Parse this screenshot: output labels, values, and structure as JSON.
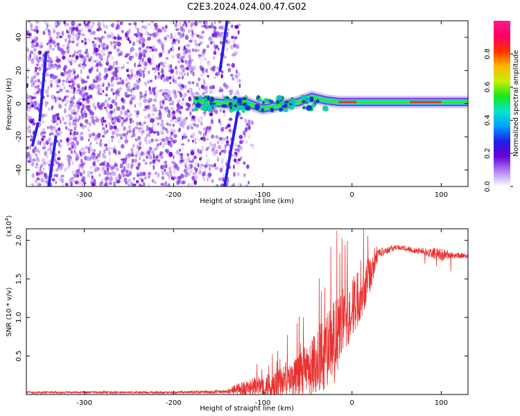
{
  "title": "C2E3.2024.024.00.47.G02",
  "colors": {
    "snr_line": "#e8312f",
    "track_core": "#ff2a2a"
  },
  "chart_data": [
    {
      "type": "heatmap",
      "xlabel": "Height of straight line (km)",
      "ylabel": "Frequency (Hz)",
      "xlim": [
        -365,
        130
      ],
      "ylim": [
        -50,
        50
      ],
      "xticks": [
        -300,
        -200,
        -100,
        0,
        100
      ],
      "yticks": [
        -40,
        -20,
        0,
        20,
        40
      ],
      "colorbar": {
        "label": "Normalized spectral amplitude",
        "range": [
          0,
          1
        ],
        "ticks": [
          0.0,
          0.2,
          0.4,
          0.6,
          0.8
        ],
        "tick_labels": [
          "0.0",
          "0.2",
          "0.4",
          "0.6",
          "0.8"
        ],
        "colormap": [
          "#ffffff",
          "#b084f5",
          "#6a00d6",
          "#1e1ee8",
          "#00a0ff",
          "#00e6c8",
          "#19e619",
          "#c8f000",
          "#ffb400",
          "#ff3000",
          "#ff0064",
          "#ff1a8c"
        ]
      },
      "noise_region_x": [
        -365,
        -125
      ],
      "signal_track": [
        {
          "x": -178,
          "y": 2
        },
        {
          "x": -160,
          "y": 1
        },
        {
          "x": -140,
          "y": 0
        },
        {
          "x": -120,
          "y": 1
        },
        {
          "x": -100,
          "y": -3
        },
        {
          "x": -80,
          "y": -1
        },
        {
          "x": -60,
          "y": 1
        },
        {
          "x": -45,
          "y": 4
        },
        {
          "x": -30,
          "y": 2
        },
        {
          "x": -15,
          "y": 1
        },
        {
          "x": 0,
          "y": 1
        },
        {
          "x": 30,
          "y": 1
        },
        {
          "x": 60,
          "y": 1
        },
        {
          "x": 100,
          "y": 1
        },
        {
          "x": 130,
          "y": 1
        }
      ],
      "streaks": [
        {
          "points": [
            [
              -358,
              -25
            ],
            [
              -352,
              -12
            ]
          ]
        },
        {
          "points": [
            [
              -350,
              -10
            ],
            [
              -343,
              30
            ]
          ]
        },
        {
          "points": [
            [
              -340,
              -50
            ],
            [
              -332,
              -20
            ]
          ]
        },
        {
          "points": [
            [
              -148,
              20
            ],
            [
              -140,
              50
            ]
          ]
        },
        {
          "points": [
            [
              -143,
              -50
            ],
            [
              -128,
              -5
            ]
          ]
        }
      ]
    },
    {
      "type": "line",
      "xlabel": "Height of straight line (km)",
      "ylabel": "SNR (10 * v/v)",
      "y_multiplier": "(x10",
      "y_multiplier_exp": "4",
      "y_multiplier_close": ")",
      "xlim": [
        -365,
        130
      ],
      "ylim": [
        0,
        2.15
      ],
      "xticks": [
        -300,
        -200,
        -100,
        0,
        100
      ],
      "yticks": [
        0.5,
        1.0,
        1.5,
        2.0
      ],
      "ytick_labels": [
        "0.5",
        "1.0",
        "1.5",
        "2.0"
      ],
      "series": [
        {
          "x": [
            -365,
            -300,
            -200,
            -140,
            -130,
            -110,
            -90,
            -70,
            -60,
            -50,
            -40,
            -30,
            -20,
            -10,
            0,
            10,
            20,
            30,
            50,
            70,
            90,
            100,
            110,
            120,
            130
          ],
          "y": [
            0.03,
            0.03,
            0.03,
            0.04,
            0.08,
            0.12,
            0.15,
            0.22,
            0.28,
            0.38,
            0.5,
            0.65,
            0.8,
            0.95,
            1.2,
            1.4,
            1.6,
            1.85,
            1.92,
            1.88,
            1.85,
            1.83,
            1.82,
            1.81,
            1.8
          ],
          "noise": [
            0.02,
            0.02,
            0.02,
            0.03,
            0.1,
            0.15,
            0.22,
            0.3,
            0.35,
            0.45,
            0.55,
            0.6,
            0.7,
            0.55,
            0.5,
            0.45,
            0.3,
            0.08,
            0.04,
            0.05,
            0.08,
            0.1,
            0.06,
            0.05,
            0.03
          ]
        }
      ]
    }
  ]
}
